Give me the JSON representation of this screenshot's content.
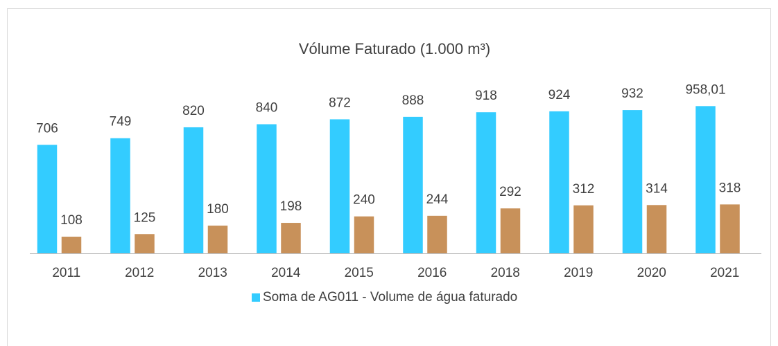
{
  "chart_data": {
    "type": "bar",
    "title": "Vólume Faturado (1.000 m³)",
    "categories": [
      "2011",
      "2012",
      "2013",
      "2014",
      "2015",
      "2016",
      "2018",
      "2019",
      "2020",
      "2021"
    ],
    "series": [
      {
        "name": "Soma de AG011 - Volume de água faturado",
        "color": "#33ccff",
        "values": [
          706,
          749,
          820,
          840,
          872,
          888,
          918,
          924,
          932,
          958.01
        ],
        "value_labels": [
          "706",
          "749",
          "820",
          "840",
          "872",
          "888",
          "918",
          "924",
          "932",
          "958,01"
        ]
      },
      {
        "color": "#c8915a",
        "values": [
          108,
          125,
          180,
          198,
          240,
          244,
          292,
          312,
          314,
          318
        ]
      }
    ],
    "ylim": [
      0,
      1000
    ],
    "legend": "bottom"
  }
}
